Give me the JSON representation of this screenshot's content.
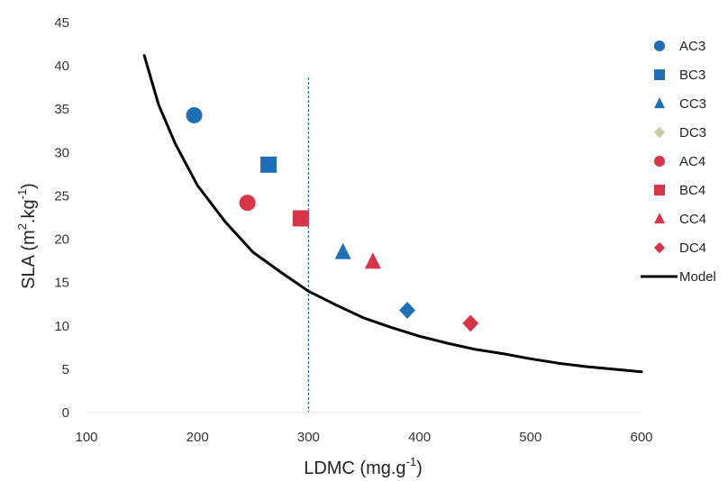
{
  "chart_data": {
    "type": "scatter",
    "xlabel": "LDMC (mg.g",
    "xlabel_sup": "-1",
    "xlabel_end": ")",
    "ylabel": "SLA (m",
    "ylabel_sup1": "2",
    "ylabel_mid": ".kg",
    "ylabel_sup2": "-1",
    "ylabel_end": ")",
    "xlim": [
      100,
      600
    ],
    "ylim": [
      0,
      45
    ],
    "x_ticks": [
      100,
      200,
      300,
      400,
      500,
      600
    ],
    "y_ticks": [
      0,
      5,
      10,
      15,
      20,
      25,
      30,
      35,
      40,
      45
    ],
    "grid": false,
    "legend_position": "right",
    "reference_line": {
      "x": 300,
      "style": "dashed",
      "color": "#2e75b6"
    },
    "series": [
      {
        "name": "AC3",
        "marker": "circle",
        "color": "#1f6fb5",
        "points": [
          {
            "x": 197,
            "y": 34.3
          }
        ]
      },
      {
        "name": "BC3",
        "marker": "square",
        "color": "#1f6fb5",
        "points": [
          {
            "x": 264,
            "y": 28.6
          }
        ]
      },
      {
        "name": "CC3",
        "marker": "triangle",
        "color": "#1f6fb5",
        "points": [
          {
            "x": 331,
            "y": 18.5
          }
        ]
      },
      {
        "name": "DC3",
        "marker": "diamond",
        "color": "#1f6fb5",
        "legend_color": "#c9c9a8",
        "points": [
          {
            "x": 389,
            "y": 11.8
          }
        ]
      },
      {
        "name": "AC4",
        "marker": "circle",
        "color": "#d63447",
        "points": [
          {
            "x": 245,
            "y": 24.2
          }
        ]
      },
      {
        "name": "BC4",
        "marker": "square",
        "color": "#d63447",
        "points": [
          {
            "x": 293,
            "y": 22.4
          }
        ]
      },
      {
        "name": "CC4",
        "marker": "triangle",
        "color": "#d63447",
        "points": [
          {
            "x": 358,
            "y": 17.4
          }
        ]
      },
      {
        "name": "DC4",
        "marker": "diamond",
        "color": "#d63447",
        "points": [
          {
            "x": 446,
            "y": 10.3
          }
        ]
      },
      {
        "name": "Model",
        "marker": "line",
        "color": "#000000",
        "points": [
          {
            "x": 152,
            "y": 41.2
          },
          {
            "x": 165,
            "y": 35.5
          },
          {
            "x": 180,
            "y": 31.0
          },
          {
            "x": 200,
            "y": 26.2
          },
          {
            "x": 225,
            "y": 22.0
          },
          {
            "x": 250,
            "y": 18.5
          },
          {
            "x": 275,
            "y": 16.2
          },
          {
            "x": 300,
            "y": 14.0
          },
          {
            "x": 325,
            "y": 12.4
          },
          {
            "x": 350,
            "y": 10.9
          },
          {
            "x": 375,
            "y": 9.8
          },
          {
            "x": 400,
            "y": 8.8
          },
          {
            "x": 425,
            "y": 8.0
          },
          {
            "x": 450,
            "y": 7.3
          },
          {
            "x": 475,
            "y": 6.8
          },
          {
            "x": 500,
            "y": 6.2
          },
          {
            "x": 525,
            "y": 5.7
          },
          {
            "x": 550,
            "y": 5.3
          },
          {
            "x": 575,
            "y": 5.0
          },
          {
            "x": 600,
            "y": 4.7
          }
        ]
      }
    ]
  }
}
